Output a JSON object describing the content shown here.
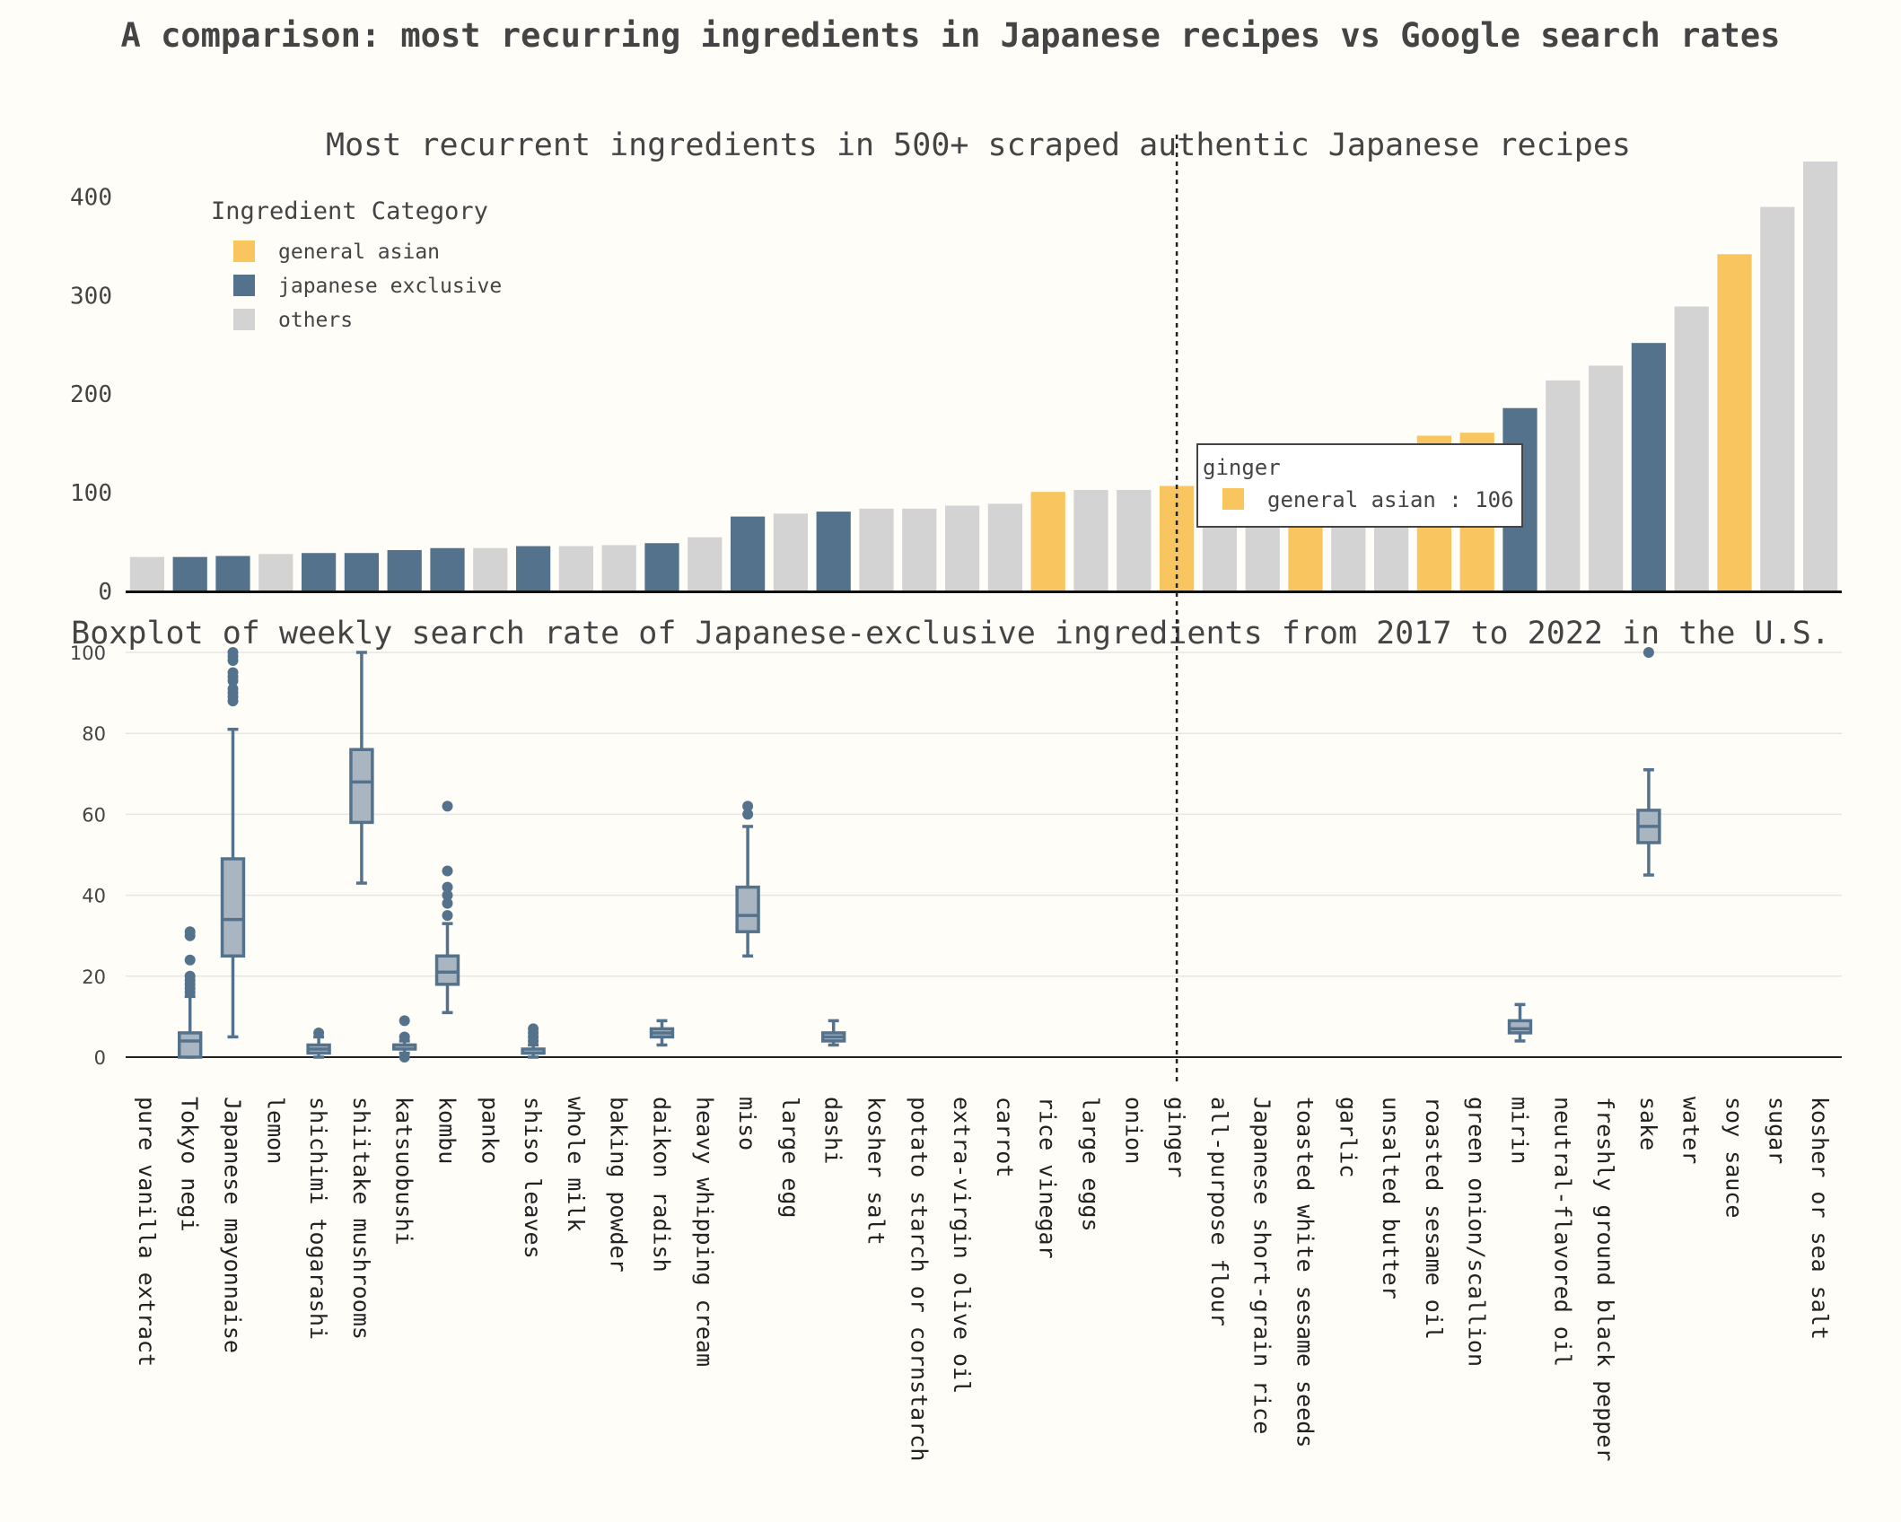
{
  "title": "A comparison: most recurring ingredients in Japanese recipes vs Google search rates",
  "colors": {
    "background": "#fffdf8",
    "general_asian": "#f8c55e",
    "japanese_exclusive": "#55728c",
    "others": "#d3d3d3",
    "box_fill": "#a9b6c1",
    "box_line": "#55728c",
    "text": "#444444",
    "grid": "#e6e6e6"
  },
  "legend": {
    "title": "Ingredient Category",
    "position": "top-left",
    "items": [
      {
        "label": "general asian",
        "color_key": "general_asian"
      },
      {
        "label": "japanese exclusive",
        "color_key": "japanese_exclusive"
      },
      {
        "label": "others",
        "color_key": "others"
      }
    ]
  },
  "tooltip": {
    "title": "ginger",
    "text": "general asian : 106",
    "color_key": "general_asian"
  },
  "hover_category": "ginger",
  "chart_data": [
    {
      "type": "bar",
      "title": "Most recurrent ingredients in 500+ scraped authentic Japanese recipes",
      "xlabel": "",
      "ylabel": "",
      "ylim": [
        0,
        435
      ],
      "yticks": [
        0,
        100,
        200,
        300,
        400
      ],
      "grid": false,
      "categories": [
        "pure vanilla extract",
        "Tokyo negi",
        "Japanese mayonnaise",
        "lemon",
        "shichimi togarashi",
        "shiitake mushrooms",
        "katsuobushi",
        "kombu",
        "panko",
        "shiso leaves",
        "whole milk",
        "baking powder",
        "daikon radish",
        "heavy whipping cream",
        "miso",
        "large egg",
        "dashi",
        "kosher salt",
        "potato starch or cornstarch",
        "extra-virgin olive oil",
        "carrot",
        "rice vinegar",
        "large eggs",
        "onion",
        "ginger",
        "all-purpose flour",
        "Japanese short-grain rice",
        "toasted white sesame seeds",
        "garlic",
        "unsalted butter",
        "roasted sesame oil",
        "green onion/scallion",
        "mirin",
        "neutral-flavored oil",
        "freshly ground black pepper",
        "sake",
        "water",
        "soy sauce",
        "sugar",
        "kosher or sea salt"
      ],
      "values": [
        34,
        34,
        35,
        37,
        38,
        38,
        41,
        43,
        43,
        45,
        45,
        46,
        48,
        54,
        75,
        78,
        80,
        83,
        83,
        86,
        88,
        100,
        102,
        102,
        106,
        108,
        110,
        120,
        126,
        135,
        157,
        160,
        185,
        213,
        228,
        251,
        288,
        341,
        389,
        435
      ],
      "category_group": [
        "others",
        "japanese_exclusive",
        "japanese_exclusive",
        "others",
        "japanese_exclusive",
        "japanese_exclusive",
        "japanese_exclusive",
        "japanese_exclusive",
        "others",
        "japanese_exclusive",
        "others",
        "others",
        "japanese_exclusive",
        "others",
        "japanese_exclusive",
        "others",
        "japanese_exclusive",
        "others",
        "others",
        "others",
        "others",
        "general_asian",
        "others",
        "others",
        "general_asian",
        "others",
        "others",
        "general_asian",
        "others",
        "others",
        "general_asian",
        "general_asian",
        "japanese_exclusive",
        "others",
        "others",
        "japanese_exclusive",
        "others",
        "general_asian",
        "others",
        "others"
      ]
    },
    {
      "type": "box",
      "title": "Boxplot of weekly search rate of Japanese-exclusive ingredients from 2017 to 2022 in the U.S.",
      "xlabel": "",
      "ylabel": "",
      "ylim": [
        0,
        100
      ],
      "yticks": [
        0,
        20,
        40,
        60,
        80,
        100
      ],
      "grid": true,
      "boxes": [
        {
          "category": "Tokyo negi",
          "min": 0,
          "q1": 0,
          "median": 4,
          "q3": 6,
          "max": 15,
          "outliers": [
            16,
            17,
            18,
            19,
            20,
            24,
            30,
            31
          ]
        },
        {
          "category": "Japanese mayonnaise",
          "min": 5,
          "q1": 25,
          "median": 34,
          "q3": 49,
          "max": 81,
          "outliers": [
            88,
            89,
            90,
            91,
            93,
            94,
            95,
            98,
            99,
            100
          ]
        },
        {
          "category": "shichimi togarashi",
          "min": 0,
          "q1": 1,
          "median": 2,
          "q3": 3,
          "max": 5,
          "outliers": [
            6
          ]
        },
        {
          "category": "shiitake mushrooms",
          "min": 43,
          "q1": 58,
          "median": 68,
          "q3": 76,
          "max": 100,
          "outliers": []
        },
        {
          "category": "katsuobushi",
          "min": 1,
          "q1": 2,
          "median": 3,
          "q3": 3,
          "max": 4,
          "outliers": [
            0,
            5,
            9
          ]
        },
        {
          "category": "kombu",
          "min": 11,
          "q1": 18,
          "median": 21,
          "q3": 25,
          "max": 33,
          "outliers": [
            35,
            38,
            40,
            42,
            46,
            62
          ]
        },
        {
          "category": "shiso leaves",
          "min": 0,
          "q1": 1,
          "median": 1,
          "q3": 2,
          "max": 3,
          "outliers": [
            4,
            5,
            6,
            7
          ]
        },
        {
          "category": "daikon radish",
          "min": 3,
          "q1": 5,
          "median": 6,
          "q3": 7,
          "max": 9,
          "outliers": []
        },
        {
          "category": "miso",
          "min": 25,
          "q1": 31,
          "median": 35,
          "q3": 42,
          "max": 57,
          "outliers": [
            60,
            62
          ]
        },
        {
          "category": "dashi",
          "min": 3,
          "q1": 4,
          "median": 5,
          "q3": 6,
          "max": 9,
          "outliers": []
        },
        {
          "category": "mirin",
          "min": 4,
          "q1": 6,
          "median": 7,
          "q3": 9,
          "max": 13,
          "outliers": []
        },
        {
          "category": "sake",
          "min": 45,
          "q1": 53,
          "median": 57,
          "q3": 61,
          "max": 71,
          "outliers": [
            100
          ]
        }
      ]
    }
  ]
}
